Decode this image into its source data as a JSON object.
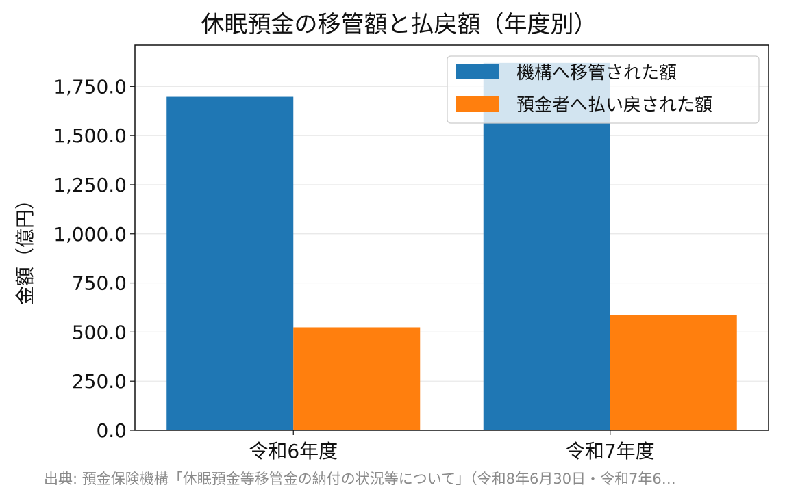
{
  "chart_data": {
    "type": "bar",
    "title": "休眠預金の移管額と払戻額（年度別）",
    "ylabel": "金額（億円）",
    "xlabel": "",
    "categories": [
      "令和6年度",
      "令和7年度"
    ],
    "series": [
      {
        "name": "機構へ移管された額",
        "values": [
          1697,
          1870
        ],
        "color": "#1f77b4"
      },
      {
        "name": "預金者へ払い戻された額",
        "values": [
          524,
          588
        ],
        "color": "#ff7f0e"
      }
    ],
    "ylim": [
      0,
      1960
    ],
    "yticks": [
      0,
      250,
      500,
      750,
      1000,
      1250,
      1500,
      1750
    ],
    "ytick_labels": [
      "0.0",
      "250.0",
      "500.0",
      "750.0",
      "1,000.0",
      "1,250.0",
      "1,500.0",
      "1,750.0"
    ],
    "grid": "horizontal",
    "legend_position": "top-right"
  },
  "source_note": "出典: 預金保険機構「休眠預金等移管金の納付の状況等について」（令和8年6月30日・令和7年6…"
}
